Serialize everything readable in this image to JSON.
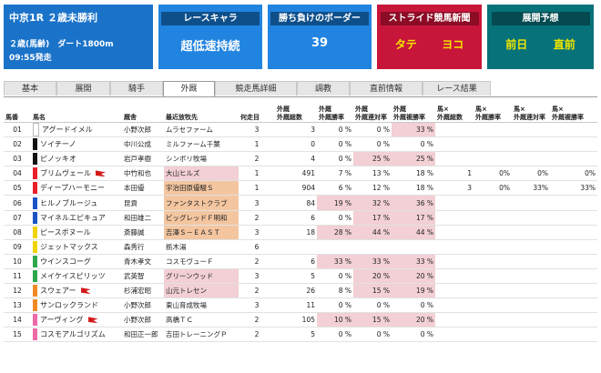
{
  "race": {
    "title": "中京1R ２歳未勝利",
    "course": "２歳(馬齢)　ダート1800m",
    "start": "09:55発走"
  },
  "cards": [
    {
      "label": "レースキャラ",
      "value": "超低速持続"
    },
    {
      "label": "勝ち負けのボーダー",
      "value": "39"
    },
    {
      "label": "ストライド競馬新聞",
      "left": "タテ",
      "right": "ヨコ"
    },
    {
      "label": "展開予想",
      "left": "前日",
      "right": "直前"
    }
  ],
  "tabs": [
    "基本",
    "展開",
    "騎手",
    "外厩",
    "競走馬詳細",
    "調教",
    "直前情報",
    "レース結果"
  ],
  "active_tab": "外厩",
  "columns": [
    "馬番",
    "馬名",
    "厩舎",
    "最近放牧先",
    "何走目",
    "外厩\n外厩総数",
    "外厩\n外厩勝率",
    "外厩\n外厩連対率",
    "外厩\n外厩複勝率",
    "馬×\n外厩総数",
    "馬×\n外厩勝率",
    "馬×\n外厩連対率",
    "馬×\n外厩複勝率"
  ],
  "colors": {
    "tan": "#f4c6a0",
    "pink": "#f2d0d5",
    "blue_card": "#2184e0",
    "red_card": "#c8163a",
    "teal_card": "#07727a"
  },
  "rows": [
    {
      "no": "01",
      "bar": "#ffffff",
      "name": "アグードイメル",
      "flag": false,
      "trainer": "小野次郎",
      "farm": "ムラセファーム",
      "farmBg": "",
      "run": "3",
      "c1": "3",
      "c2": "0 %",
      "c3": "0 %",
      "c4": "33 %",
      "h1": "",
      "h2": "",
      "h3": "",
      "h4": "",
      "hl": [
        3
      ]
    },
    {
      "no": "02",
      "bar": "#111111",
      "name": "ソイチーノ",
      "flag": false,
      "trainer": "中川公成",
      "farm": "ミルファーム千葉",
      "farmBg": "",
      "run": "1",
      "c1": "0",
      "c2": "0 %",
      "c3": "0 %",
      "c4": "0 %",
      "h1": "",
      "h2": "",
      "h3": "",
      "h4": "",
      "hl": []
    },
    {
      "no": "03",
      "bar": "#111111",
      "name": "ピノッキオ",
      "flag": false,
      "trainer": "岩戸孝樹",
      "farm": "シンボリ牧場",
      "farmBg": "",
      "run": "2",
      "c1": "4",
      "c2": "0 %",
      "c3": "25 %",
      "c4": "25 %",
      "h1": "",
      "h2": "",
      "h3": "",
      "h4": "",
      "hl": [
        2,
        3
      ]
    },
    {
      "no": "04",
      "bar": "#e8202a",
      "name": "ブリムヴェール",
      "flag": true,
      "trainer": "中竹和也",
      "farm": "大山ヒルズ",
      "farmBg": "pink",
      "run": "1",
      "c1": "491",
      "c2": "7 %",
      "c3": "13 %",
      "c4": "18 %",
      "h1": "1",
      "h2": "0%",
      "h3": "0%",
      "h4": "0%",
      "hl": []
    },
    {
      "no": "05",
      "bar": "#e8202a",
      "name": "ディープハーモニー",
      "flag": false,
      "trainer": "本田優",
      "farm": "宇治田原優駿Ｓ",
      "farmBg": "tan",
      "run": "1",
      "c1": "904",
      "c2": "6 %",
      "c3": "12 %",
      "c4": "18 %",
      "h1": "3",
      "h2": "0%",
      "h3": "33%",
      "h4": "33%",
      "hl": []
    },
    {
      "no": "06",
      "bar": "#1a53c4",
      "name": "ヒルノブルージュ",
      "flag": false,
      "trainer": "昆貢",
      "farm": "ファンタストクラブ",
      "farmBg": "tan",
      "run": "3",
      "c1": "84",
      "c2": "19 %",
      "c3": "32 %",
      "c4": "36 %",
      "h1": "",
      "h2": "",
      "h3": "",
      "h4": "",
      "hl": [
        1,
        2,
        3
      ]
    },
    {
      "no": "07",
      "bar": "#1a53c4",
      "name": "マイネルエピキュア",
      "flag": false,
      "trainer": "和田雄二",
      "farm": "ビッグレッドＦ明和",
      "farmBg": "tan",
      "run": "2",
      "c1": "6",
      "c2": "0 %",
      "c3": "17 %",
      "c4": "17 %",
      "h1": "",
      "h2": "",
      "h3": "",
      "h4": "",
      "hl": [
        2,
        3
      ]
    },
    {
      "no": "08",
      "bar": "#f0d300",
      "name": "ピースボヌール",
      "flag": false,
      "trainer": "斎藤誠",
      "farm": "吉澤Ｓ－ＥＡＳＴ",
      "farmBg": "tan",
      "run": "3",
      "c1": "18",
      "c2": "28 %",
      "c3": "44 %",
      "c4": "44 %",
      "h1": "",
      "h2": "",
      "h3": "",
      "h4": "",
      "hl": [
        1,
        2,
        3
      ]
    },
    {
      "no": "09",
      "bar": "#f0d300",
      "name": "ジェットマックス",
      "flag": false,
      "trainer": "森秀行",
      "farm": "栃木湯",
      "farmBg": "",
      "run": "6",
      "c1": "",
      "c2": "",
      "c3": "",
      "c4": "",
      "h1": "",
      "h2": "",
      "h3": "",
      "h4": "",
      "hl": []
    },
    {
      "no": "10",
      "bar": "#2ea84a",
      "name": "ウインスコーグ",
      "flag": false,
      "trainer": "青木孝文",
      "farm": "コスモヴューＦ",
      "farmBg": "",
      "run": "2",
      "c1": "6",
      "c2": "33 %",
      "c3": "33 %",
      "c4": "33 %",
      "h1": "",
      "h2": "",
      "h3": "",
      "h4": "",
      "hl": [
        1,
        2,
        3
      ]
    },
    {
      "no": "11",
      "bar": "#2ea84a",
      "name": "メイケイスピリッツ",
      "flag": false,
      "trainer": "武英智",
      "farm": "グリーンウッド",
      "farmBg": "pink",
      "run": "3",
      "c1": "5",
      "c2": "0 %",
      "c3": "20 %",
      "c4": "20 %",
      "h1": "",
      "h2": "",
      "h3": "",
      "h4": "",
      "hl": [
        2,
        3
      ]
    },
    {
      "no": "12",
      "bar": "#f08a24",
      "name": "スウェアー",
      "flag": true,
      "trainer": "杉浦宏昭",
      "farm": "山元トレセン",
      "farmBg": "pink",
      "run": "2",
      "c1": "26",
      "c2": "8 %",
      "c3": "15 %",
      "c4": "19 %",
      "h1": "",
      "h2": "",
      "h3": "",
      "h4": "",
      "hl": [
        2,
        3
      ]
    },
    {
      "no": "13",
      "bar": "#f08a24",
      "name": "サンロックランド",
      "flag": false,
      "trainer": "小野次郎",
      "farm": "東山育成牧場",
      "farmBg": "",
      "run": "3",
      "c1": "11",
      "c2": "0 %",
      "c3": "0 %",
      "c4": "0 %",
      "h1": "",
      "h2": "",
      "h3": "",
      "h4": "",
      "hl": []
    },
    {
      "no": "14",
      "bar": "#ee6aa8",
      "name": "アーヴィング",
      "flag": true,
      "trainer": "小野次郎",
      "farm": "高橋ＴＣ",
      "farmBg": "",
      "run": "2",
      "c1": "105",
      "c2": "10 %",
      "c3": "15 %",
      "c4": "20 %",
      "h1": "",
      "h2": "",
      "h3": "",
      "h4": "",
      "hl": [
        1,
        2,
        3
      ]
    },
    {
      "no": "15",
      "bar": "#ee6aa8",
      "name": "コスモアルゴリズム",
      "flag": false,
      "trainer": "和田正一郎",
      "farm": "吉田トレーニングＰ",
      "farmBg": "",
      "run": "2",
      "c1": "5",
      "c2": "0 %",
      "c3": "0 %",
      "c4": "0 %",
      "h1": "",
      "h2": "",
      "h3": "",
      "h4": "",
      "hl": []
    }
  ]
}
